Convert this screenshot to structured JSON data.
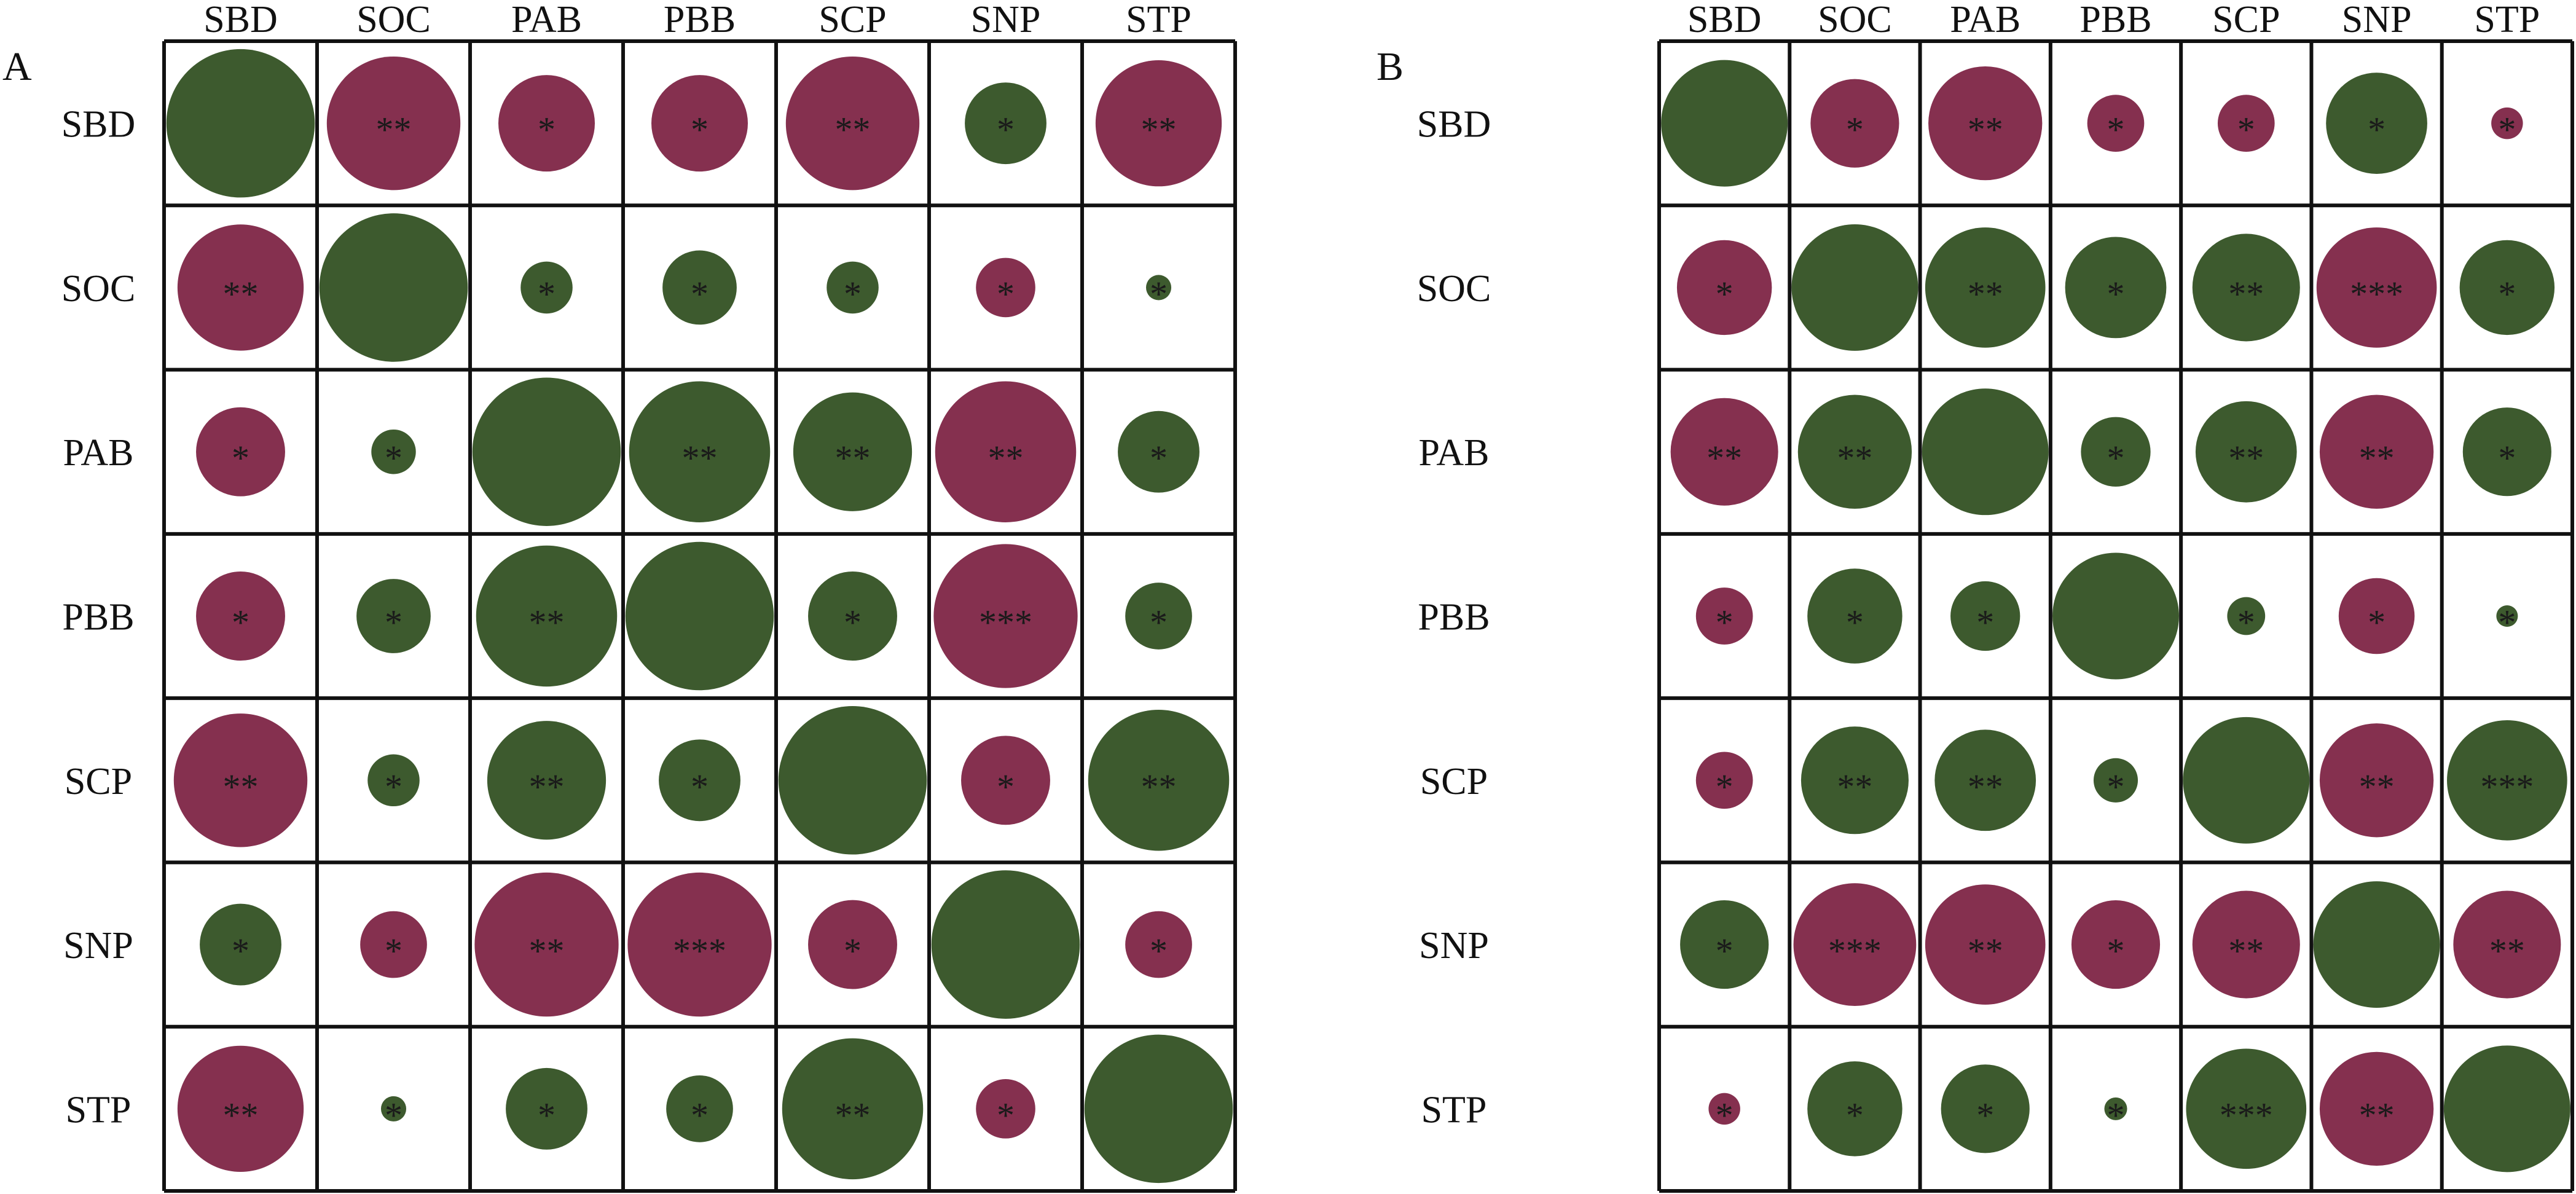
{
  "colors": {
    "positive": "#3d5a2e",
    "negative": "#85304f",
    "grid": "#111111"
  },
  "chart_data": [
    {
      "type": "heatmap",
      "subtype": "correlation-circle-matrix",
      "panel_label": "A",
      "variables": [
        "SBD",
        "SOC",
        "PAB",
        "PBB",
        "SCP",
        "SNP",
        "STP"
      ],
      "values": [
        [
          1,
          -0.9,
          -0.65,
          -0.65,
          -0.9,
          0.55,
          -0.85
        ],
        [
          -0.85,
          1,
          0.35,
          0.5,
          0.35,
          -0.4,
          0.17
        ],
        [
          -0.6,
          0.3,
          1,
          0.95,
          0.8,
          -0.95,
          0.55
        ],
        [
          -0.6,
          0.5,
          0.95,
          1,
          0.6,
          -0.97,
          0.45
        ],
        [
          -0.9,
          0.35,
          0.8,
          0.55,
          1,
          -0.6,
          0.95
        ],
        [
          0.55,
          -0.45,
          -0.97,
          -0.97,
          -0.6,
          1,
          -0.45
        ],
        [
          -0.85,
          0.17,
          0.55,
          0.45,
          0.95,
          -0.4,
          1
        ]
      ],
      "significance": [
        [
          "",
          "**",
          "*",
          "*",
          "**",
          "*",
          "**"
        ],
        [
          "**",
          "",
          "*",
          "*",
          "*",
          "*",
          "*"
        ],
        [
          "*",
          "*",
          "",
          "**",
          "**",
          "**",
          "*"
        ],
        [
          "*",
          "*",
          "**",
          "",
          "*",
          "***",
          "*"
        ],
        [
          "**",
          "*",
          "**",
          "*",
          "",
          "*",
          "**"
        ],
        [
          "*",
          "*",
          "**",
          "***",
          "*",
          "",
          "*"
        ],
        [
          "**",
          "*",
          "*",
          "*",
          "**",
          "*",
          ""
        ]
      ]
    },
    {
      "type": "heatmap",
      "subtype": "correlation-circle-matrix",
      "panel_label": "B",
      "variables": [
        "SBD",
        "SOC",
        "PAB",
        "PBB",
        "SCP",
        "SNP",
        "STP"
      ],
      "values": [
        [
          1,
          -0.7,
          -0.9,
          -0.45,
          -0.45,
          0.8,
          -0.25
        ],
        [
          -0.75,
          1,
          0.95,
          0.8,
          0.85,
          -0.95,
          0.75
        ],
        [
          -0.85,
          0.9,
          1,
          0.55,
          0.8,
          -0.9,
          0.7
        ],
        [
          -0.45,
          0.75,
          0.55,
          1,
          0.3,
          -0.6,
          0.17
        ],
        [
          -0.45,
          0.85,
          0.8,
          0.35,
          1,
          -0.9,
          0.95
        ],
        [
          0.7,
          -0.97,
          -0.95,
          -0.7,
          -0.85,
          1,
          -0.85
        ],
        [
          -0.25,
          0.75,
          0.7,
          0.18,
          0.95,
          -0.9,
          1
        ]
      ],
      "significance": [
        [
          "",
          "*",
          "**",
          "*",
          "*",
          "*",
          "*"
        ],
        [
          "*",
          "",
          "**",
          "*",
          "**",
          "***",
          "*"
        ],
        [
          "**",
          "**",
          "",
          "*",
          "**",
          "**",
          "*"
        ],
        [
          "*",
          "*",
          "*",
          "",
          "*",
          "*",
          "*"
        ],
        [
          "*",
          "**",
          "**",
          "*",
          "",
          "**",
          "***"
        ],
        [
          "*",
          "***",
          "**",
          "*",
          "**",
          "",
          "**"
        ],
        [
          "*",
          "*",
          "*",
          "*",
          "***",
          "**",
          ""
        ]
      ]
    }
  ]
}
